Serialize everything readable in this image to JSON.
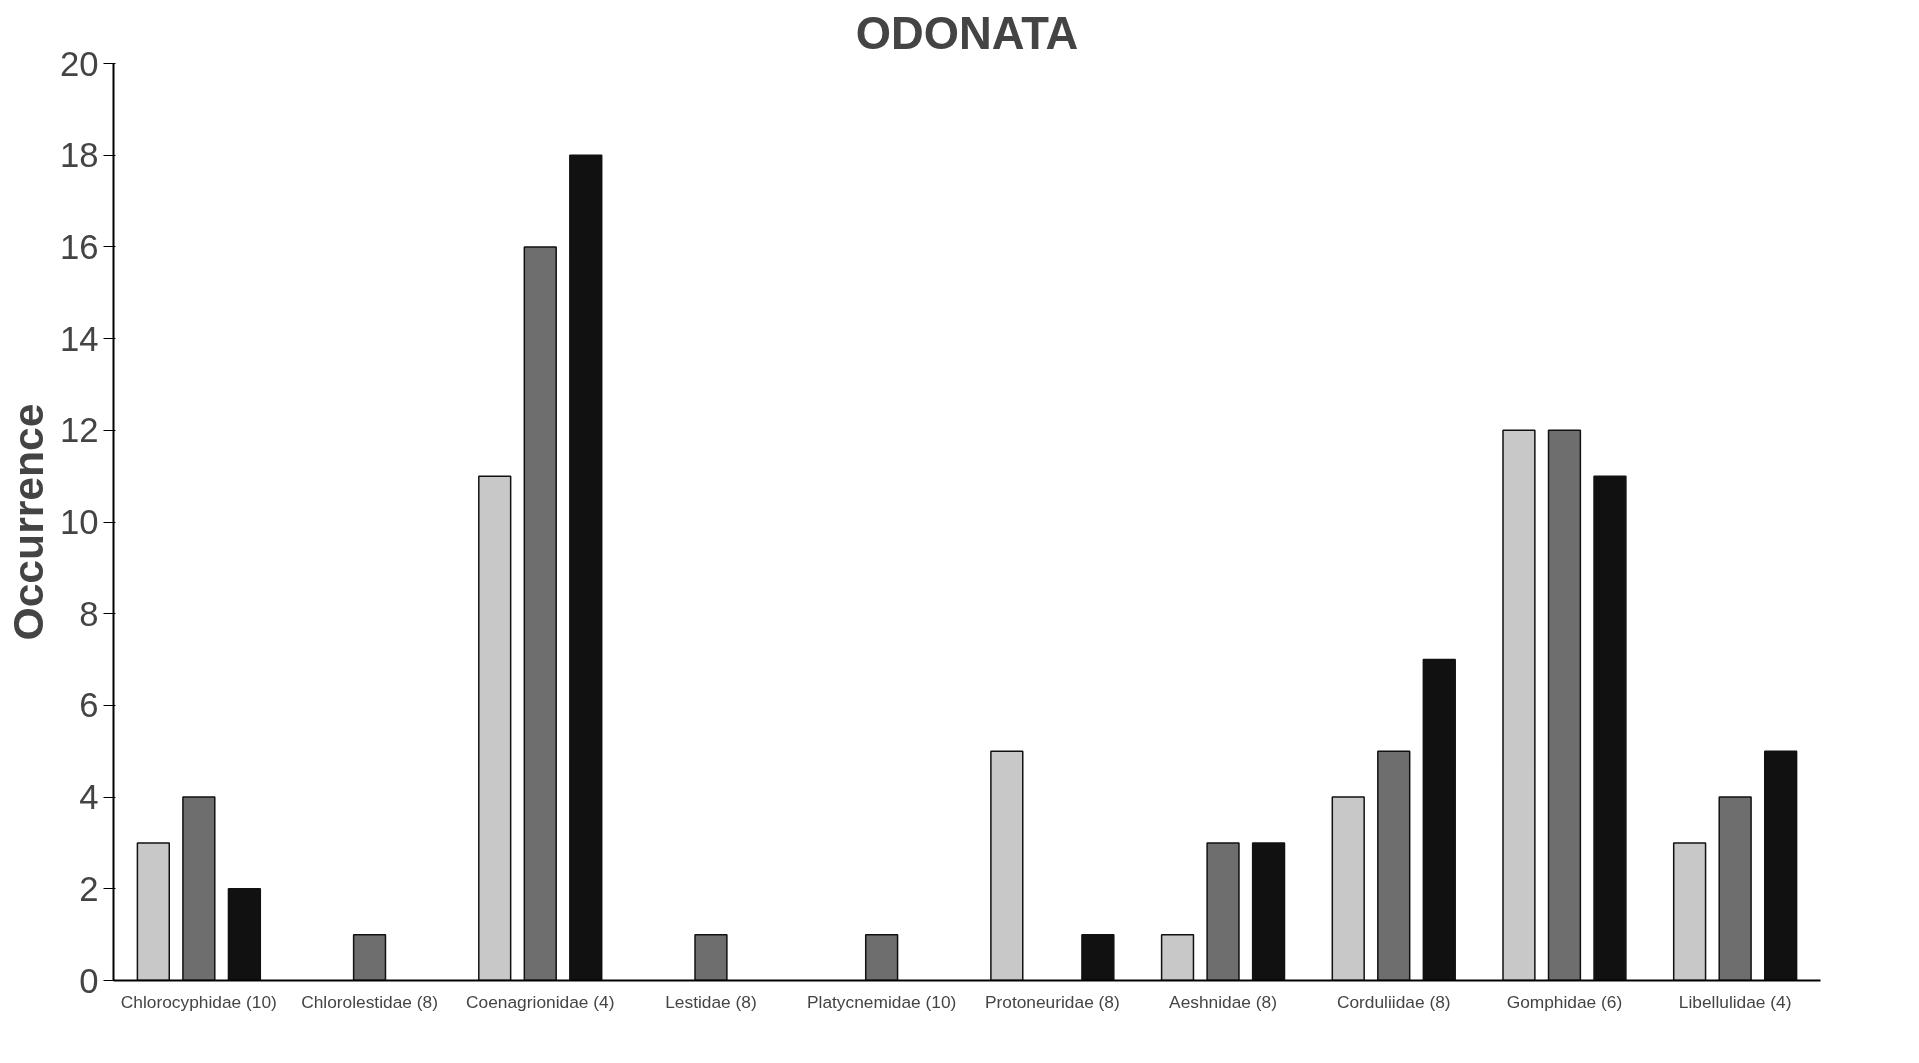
{
  "chart_data": {
    "type": "bar",
    "title": "ODONATA",
    "ylabel": "Occurrence",
    "categories": [
      "Chlorocyphidae (10)",
      "Chlorolestidae (8)",
      "Coenagrionidae (4)",
      "Lestidae (8)",
      "Platycnemidae (10)",
      "Protoneuridae (8)",
      "Aeshnidae (8)",
      "Corduliidae (8)",
      "Gomphidae (6)",
      "Libellulidae (4)"
    ],
    "series": [
      {
        "color": "#c8c8c8",
        "values": [
          3,
          null,
          11,
          null,
          null,
          5,
          1,
          4,
          12,
          3
        ]
      },
      {
        "color": "#6e6e6e",
        "values": [
          4,
          1,
          16,
          1,
          1,
          null,
          3,
          5,
          12,
          4
        ]
      },
      {
        "color": "#111111",
        "values": [
          2,
          null,
          18,
          null,
          null,
          1,
          3,
          7,
          11,
          5
        ]
      }
    ],
    "ylim": [
      0,
      20
    ],
    "yticks": [
      0,
      2,
      4,
      6,
      8,
      10,
      12,
      14,
      16,
      18,
      20
    ],
    "grid": false
  }
}
